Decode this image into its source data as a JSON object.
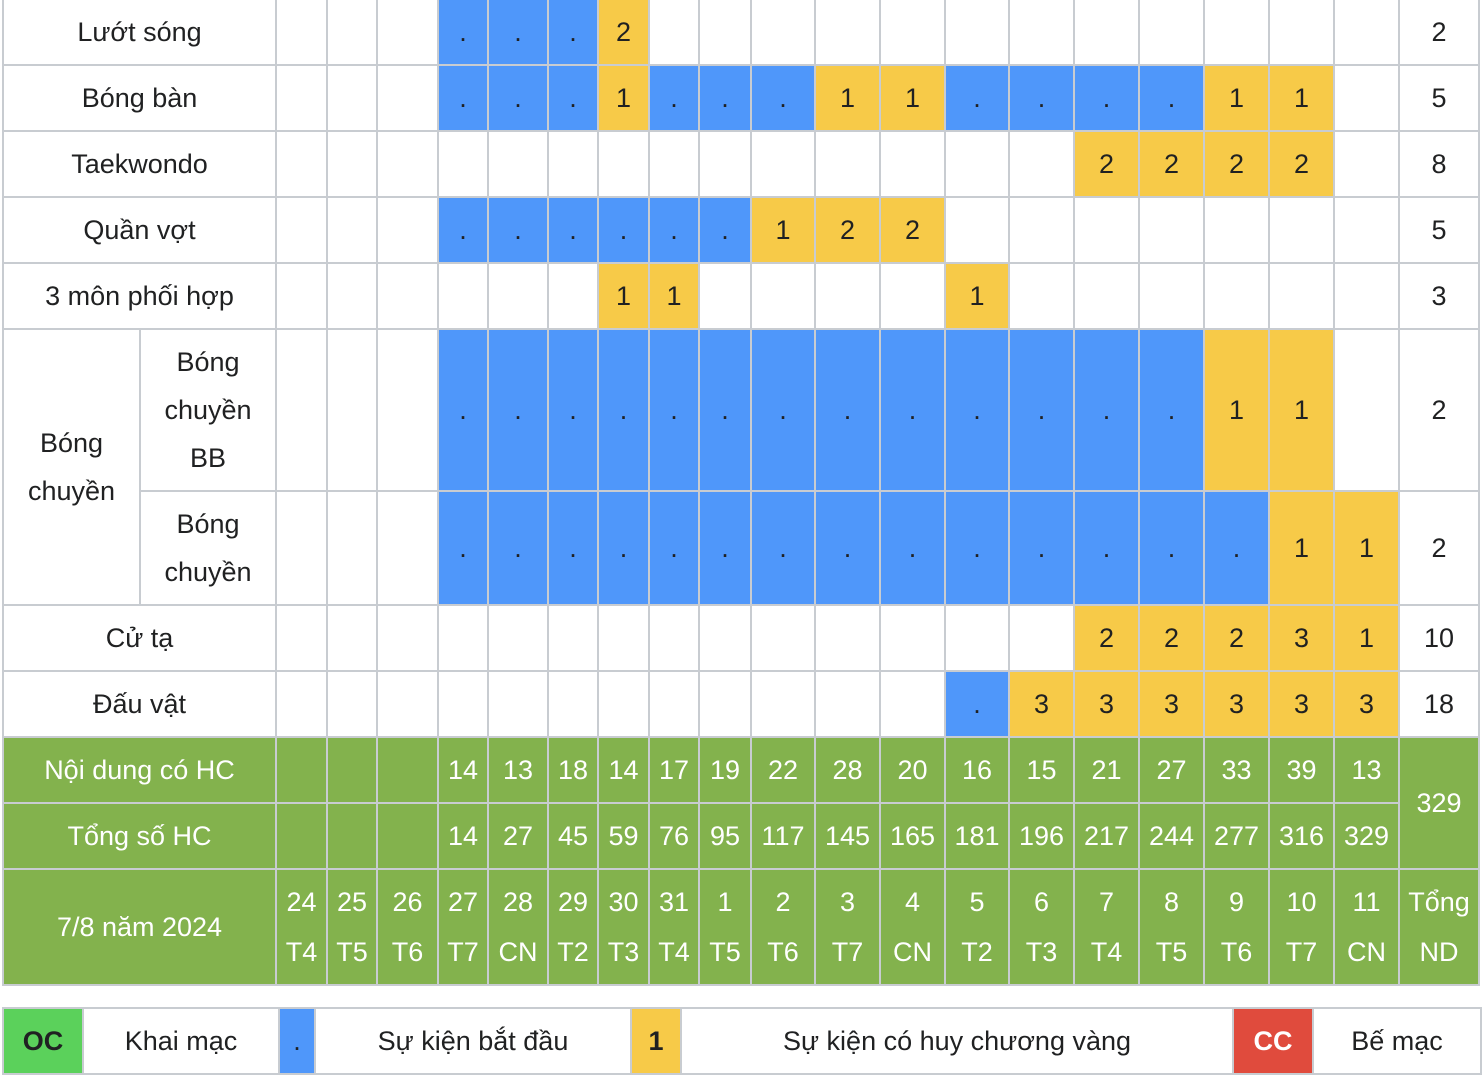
{
  "rows": [
    {
      "name": "Lướt sóng",
      "cells": [
        [
          "b",
          "."
        ],
        [
          "b",
          "."
        ],
        [
          "b",
          "."
        ],
        [
          "g",
          "2"
        ],
        [
          "",
          ""
        ],
        [
          "",
          ""
        ],
        [
          "",
          ""
        ],
        [
          "",
          ""
        ],
        [
          "",
          ""
        ],
        [
          "",
          ""
        ],
        [
          "",
          ""
        ],
        [
          "",
          ""
        ],
        [
          "",
          ""
        ],
        [
          "",
          ""
        ],
        [
          "",
          ""
        ],
        [
          "",
          ""
        ]
      ],
      "total": "2"
    },
    {
      "name": "Bóng bàn",
      "cells": [
        [
          "b",
          "."
        ],
        [
          "b",
          "."
        ],
        [
          "b",
          "."
        ],
        [
          "g",
          "1"
        ],
        [
          "b",
          "."
        ],
        [
          "b",
          "."
        ],
        [
          "b",
          "."
        ],
        [
          "g",
          "1"
        ],
        [
          "g",
          "1"
        ],
        [
          "b",
          "."
        ],
        [
          "b",
          "."
        ],
        [
          "b",
          "."
        ],
        [
          "b",
          "."
        ],
        [
          "g",
          "1"
        ],
        [
          "g",
          "1"
        ],
        [
          "",
          ""
        ]
      ],
      "total": "5"
    },
    {
      "name": "Taekwondo",
      "cells": [
        [
          "",
          ""
        ],
        [
          "",
          ""
        ],
        [
          "",
          ""
        ],
        [
          "",
          ""
        ],
        [
          "",
          ""
        ],
        [
          "",
          ""
        ],
        [
          "",
          ""
        ],
        [
          "",
          ""
        ],
        [
          "",
          ""
        ],
        [
          "",
          ""
        ],
        [
          "",
          ""
        ],
        [
          "g",
          "2"
        ],
        [
          "g",
          "2"
        ],
        [
          "g",
          "2"
        ],
        [
          "g",
          "2"
        ],
        [
          "",
          ""
        ]
      ],
      "total": "8"
    },
    {
      "name": "Quần vợt",
      "cells": [
        [
          "b",
          "."
        ],
        [
          "b",
          "."
        ],
        [
          "b",
          "."
        ],
        [
          "b",
          "."
        ],
        [
          "b",
          "."
        ],
        [
          "b",
          "."
        ],
        [
          "g",
          "1"
        ],
        [
          "g",
          "2"
        ],
        [
          "g",
          "2"
        ],
        [
          "",
          ""
        ],
        [
          "",
          ""
        ],
        [
          "",
          ""
        ],
        [
          "",
          ""
        ],
        [
          "",
          ""
        ],
        [
          "",
          ""
        ],
        [
          "",
          ""
        ]
      ],
      "total": "5"
    },
    {
      "name": "3 môn phối hợp",
      "cells": [
        [
          "",
          ""
        ],
        [
          "",
          ""
        ],
        [
          "",
          ""
        ],
        [
          "g",
          "1"
        ],
        [
          "g",
          "1"
        ],
        [
          "",
          ""
        ],
        [
          "",
          ""
        ],
        [
          "",
          ""
        ],
        [
          "",
          ""
        ],
        [
          "g",
          "1"
        ],
        [
          "",
          ""
        ],
        [
          "",
          ""
        ],
        [
          "",
          ""
        ],
        [
          "",
          ""
        ],
        [
          "",
          ""
        ],
        [
          "",
          ""
        ]
      ],
      "total": "3"
    }
  ],
  "volleyball": {
    "group": "Bóng chuyền",
    "subs": [
      {
        "name": "Bóng chuyền BB",
        "cells": [
          [
            "b",
            "."
          ],
          [
            "b",
            "."
          ],
          [
            "b",
            "."
          ],
          [
            "b",
            "."
          ],
          [
            "b",
            "."
          ],
          [
            "b",
            "."
          ],
          [
            "b",
            "."
          ],
          [
            "b",
            "."
          ],
          [
            "b",
            "."
          ],
          [
            "b",
            "."
          ],
          [
            "b",
            "."
          ],
          [
            "b",
            "."
          ],
          [
            "b",
            "."
          ],
          [
            "g",
            "1"
          ],
          [
            "g",
            "1"
          ],
          [
            "",
            ""
          ]
        ],
        "total": "2"
      },
      {
        "name": "Bóng chuyền",
        "cells": [
          [
            "b",
            "."
          ],
          [
            "b",
            "."
          ],
          [
            "b",
            "."
          ],
          [
            "b",
            "."
          ],
          [
            "b",
            "."
          ],
          [
            "b",
            "."
          ],
          [
            "b",
            "."
          ],
          [
            "b",
            "."
          ],
          [
            "b",
            "."
          ],
          [
            "b",
            "."
          ],
          [
            "b",
            "."
          ],
          [
            "b",
            "."
          ],
          [
            "b",
            "."
          ],
          [
            "b",
            "."
          ],
          [
            "g",
            "1"
          ],
          [
            "g",
            "1"
          ]
        ],
        "total": "2"
      }
    ]
  },
  "rows2": [
    {
      "name": "Cử tạ",
      "cells": [
        [
          "",
          ""
        ],
        [
          "",
          ""
        ],
        [
          "",
          ""
        ],
        [
          "",
          ""
        ],
        [
          "",
          ""
        ],
        [
          "",
          ""
        ],
        [
          "",
          ""
        ],
        [
          "",
          ""
        ],
        [
          "",
          ""
        ],
        [
          "",
          ""
        ],
        [
          "",
          ""
        ],
        [
          "g",
          "2"
        ],
        [
          "g",
          "2"
        ],
        [
          "g",
          "2"
        ],
        [
          "g",
          "3"
        ],
        [
          "g",
          "1"
        ]
      ],
      "total": "10"
    },
    {
      "name": "Đấu vật",
      "cells": [
        [
          "",
          ""
        ],
        [
          "",
          ""
        ],
        [
          "",
          ""
        ],
        [
          "",
          ""
        ],
        [
          "",
          ""
        ],
        [
          "",
          ""
        ],
        [
          "",
          ""
        ],
        [
          "",
          ""
        ],
        [
          "",
          ""
        ],
        [
          "b",
          "."
        ],
        [
          "g",
          "3"
        ],
        [
          "g",
          "3"
        ],
        [
          "g",
          "3"
        ],
        [
          "g",
          "3"
        ],
        [
          "g",
          "3"
        ],
        [
          "g",
          "3"
        ]
      ],
      "total": "18"
    }
  ],
  "summary": {
    "events_label": "Nội dung có HC",
    "events": [
      "14",
      "13",
      "18",
      "14",
      "17",
      "19",
      "22",
      "28",
      "20",
      "16",
      "15",
      "21",
      "27",
      "33",
      "39",
      "13"
    ],
    "total_label": "Tổng số HC",
    "cumulative": [
      "14",
      "27",
      "45",
      "59",
      "76",
      "95",
      "117",
      "145",
      "165",
      "181",
      "196",
      "217",
      "244",
      "277",
      "316",
      "329"
    ],
    "grand_total": "329"
  },
  "dates_label": "7/8 năm 2024",
  "dates": [
    {
      "day": "24",
      "wd": "T4"
    },
    {
      "day": "25",
      "wd": "T5"
    },
    {
      "day": "26",
      "wd": "T6"
    },
    {
      "day": "27",
      "wd": "T7"
    },
    {
      "day": "28",
      "wd": "CN"
    },
    {
      "day": "29",
      "wd": "T2"
    },
    {
      "day": "30",
      "wd": "T3"
    },
    {
      "day": "31",
      "wd": "T4"
    },
    {
      "day": "1",
      "wd": "T5"
    },
    {
      "day": "2",
      "wd": "T6"
    },
    {
      "day": "3",
      "wd": "T7"
    },
    {
      "day": "4",
      "wd": "CN"
    },
    {
      "day": "5",
      "wd": "T2"
    },
    {
      "day": "6",
      "wd": "T3"
    },
    {
      "day": "7",
      "wd": "T4"
    },
    {
      "day": "8",
      "wd": "T5"
    },
    {
      "day": "9",
      "wd": "T6"
    },
    {
      "day": "10",
      "wd": "T7"
    },
    {
      "day": "11",
      "wd": "CN"
    }
  ],
  "total_nd_label": "Tổng ND",
  "legend": {
    "oc_code": "OC",
    "oc_label": "Khai mạc",
    "start_code": ".",
    "start_label": "Sự kiện bắt đầu",
    "gold_code": "1",
    "gold_label": "Sự kiện có huy chương vàng",
    "cc_code": "CC",
    "cc_label": "Bế mạc"
  },
  "colors": {
    "blue": "#4f97fa",
    "yellow": "#f7ca48",
    "green": "#83b24d",
    "oc_green": "#5bd15b",
    "cc_red": "#e04b3d",
    "border": "#c8ccd1"
  }
}
